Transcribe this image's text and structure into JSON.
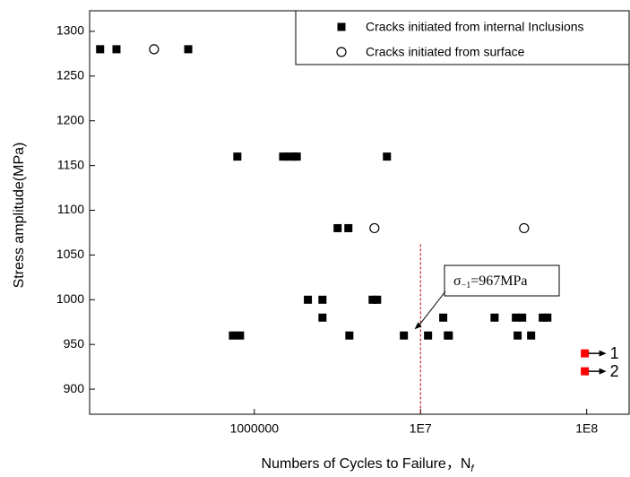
{
  "chart_data": {
    "type": "scatter",
    "xlabel": "Numbers of Cycles to Failure，N",
    "xlabel_sub": "f",
    "ylabel": "Stress amplitude(MPa)",
    "xscale": "log",
    "xlim": [
      102000,
      180000000
    ],
    "ylim": [
      872,
      1323
    ],
    "xticks": [
      1000000,
      {
        "value": 10000000,
        "label": "1E7"
      },
      {
        "value": 100000000,
        "label": "1E8"
      }
    ],
    "yticks": [
      900,
      950,
      1000,
      1050,
      1100,
      1150,
      1200,
      1250,
      1300
    ],
    "legend": "upper right",
    "series": [
      {
        "name": "Cracks initiated from internal Inclusions",
        "marker": "square",
        "color": "#000000",
        "x": [
          118000,
          148000,
          400000,
          790000,
          1490000,
          1600000,
          1730000,
          1800000,
          6280000,
          3170000,
          3680000,
          2100000,
          2570000,
          5150000,
          5480000,
          2570000,
          13700000,
          27900000,
          37500000,
          40900000,
          54400000,
          58000000,
          743000,
          820000,
          3730000,
          7940000,
          11100000,
          14600000,
          14800000,
          38400000,
          46300000
        ],
        "values": [
          1280,
          1280,
          1280,
          1160,
          1160,
          1160,
          1160,
          1160,
          1160,
          1080,
          1080,
          1000,
          1000,
          1000,
          1000,
          980,
          980,
          980,
          980,
          980,
          980,
          980,
          960,
          960,
          960,
          960,
          960,
          960,
          960,
          960,
          960
        ]
      },
      {
        "name": "Cracks initiated from surface",
        "marker": "circle",
        "color": "#000000",
        "x": [
          249000,
          5280000,
          42000000
        ],
        "values": [
          1280,
          1080,
          1080
        ]
      }
    ],
    "markers": [
      {
        "x": 97500000,
        "y": 940,
        "label": "1",
        "color": "#ff0000"
      },
      {
        "x": 97500000,
        "y": 920,
        "label": "2",
        "color": "#ff0000"
      }
    ],
    "vline": {
      "x": 10000000,
      "top": 1062,
      "color": "#c00000"
    },
    "annotation": {
      "parts": [
        "σ",
        "−1",
        "=967MPa"
      ],
      "x": 9200000,
      "y": 967
    }
  }
}
